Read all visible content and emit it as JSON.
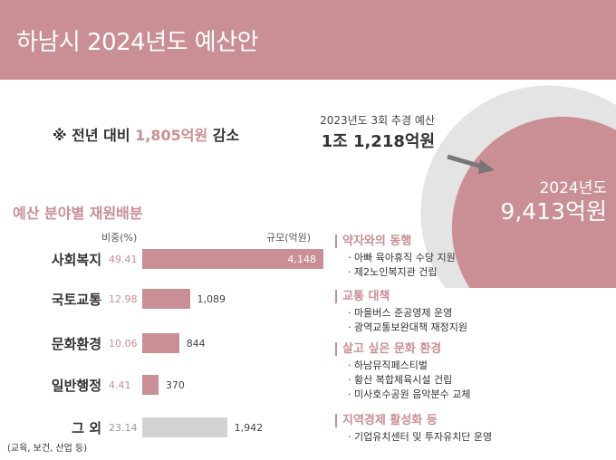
{
  "header": {
    "title": "하남시 2024년도 예산안"
  },
  "comparison": {
    "prev_label": "2023년도 3회 추경 예산",
    "prev_value": "1조 1,218억원",
    "current_year": "2024년도",
    "current_value": "9,413억원"
  },
  "note": {
    "prefix": "※ 전년 대비 ",
    "amount": "1,805억원",
    "suffix": " 감소"
  },
  "section_title": "예산 분야별 재원배분",
  "chart_data": {
    "type": "bar",
    "orientation": "horizontal",
    "title": "예산 분야별 재원배분",
    "ratio_header": "비중(%)",
    "scale_header": "규모(억원)",
    "categories": [
      "사회복지",
      "국토교통",
      "문화환경",
      "일반행정",
      "그 외"
    ],
    "category_note": "(교육, 보건, 산업 등)",
    "ratio": [
      "49.41",
      "12.98",
      "10.06",
      "4.41",
      "23.14"
    ],
    "scale": [
      4148,
      1089,
      844,
      370,
      1942
    ],
    "scale_labels": [
      "4,148",
      "1,089",
      "844",
      "370",
      "1,942"
    ],
    "colors": [
      "#c98f95",
      "#c98f95",
      "#c98f95",
      "#c98f95",
      "#d3d3d3"
    ]
  },
  "policies": [
    {
      "title": "약자와의 동행",
      "items": [
        "아빠 육아휴직 수당 지원",
        "제2노인복지관 건립"
      ]
    },
    {
      "title": "교통 대책",
      "items": [
        "마을버스 준공영제 운영",
        "광역교통보완대책 재정지원"
      ]
    },
    {
      "title": "살고 싶은 문화 환경",
      "items": [
        "하남뮤직페스티벌",
        "황산 복합체육시설 건립",
        "미사호수공원 음악분수 교체"
      ]
    },
    {
      "title": "지역경제 활성화 등",
      "items": [
        "기업유치센터 및 투자유치단 운영"
      ]
    }
  ]
}
